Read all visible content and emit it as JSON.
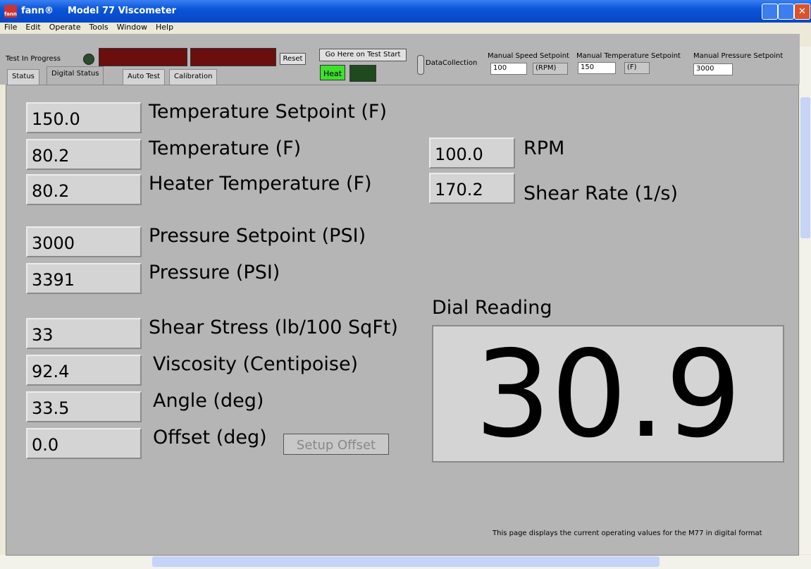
{
  "window": {
    "icon": "fann",
    "app": "fann®",
    "title": "Model 77 Viscometer"
  },
  "menu": [
    "File",
    "Edit",
    "Operate",
    "Tools",
    "Window",
    "Help"
  ],
  "toolbar": {
    "test_in_progress": "Test In Progress",
    "reset": "Reset",
    "go_here": "Go Here on Test Start",
    "heat": "Heat",
    "data_collection": "DataCollection",
    "speed": {
      "label": "Manual Speed Setpoint",
      "value": "100",
      "unit": "(RPM)"
    },
    "temperature": {
      "label": "Manual Temperature Setpoint",
      "value": "150",
      "unit": "(F)"
    },
    "pressure": {
      "label": "Manual Pressure Setpoint",
      "value": "3000"
    }
  },
  "tabs": [
    "Status",
    "Digital Status",
    "Auto Test",
    "Calibration"
  ],
  "fields": [
    {
      "value": "150.0",
      "label": "Temperature Setpoint (F)"
    },
    {
      "value": "80.2",
      "label": "Temperature (F)"
    },
    {
      "value": "80.2",
      "label": "Heater Temperature (F)"
    },
    {
      "value": "3000",
      "label": "Pressure Setpoint (PSI)"
    },
    {
      "value": "3391",
      "label": "Pressure (PSI)"
    },
    {
      "value": "33",
      "label": "Shear Stress (lb/100 SqFt)"
    },
    {
      "value": "92.4",
      "label": "Viscosity (Centipoise)"
    },
    {
      "value": "33.5",
      "label": "Angle (deg)"
    },
    {
      "value": "0.0",
      "label": "Offset (deg)"
    }
  ],
  "right_fields": [
    {
      "value": "100.0",
      "label": "RPM"
    },
    {
      "value": "170.2",
      "label": "Shear Rate (1/s)"
    }
  ],
  "setup_offset": "Setup Offset",
  "dial": {
    "label": "Dial Reading",
    "value": "30.9"
  },
  "note": "This page displays the current operating values for the M77 in digital format"
}
